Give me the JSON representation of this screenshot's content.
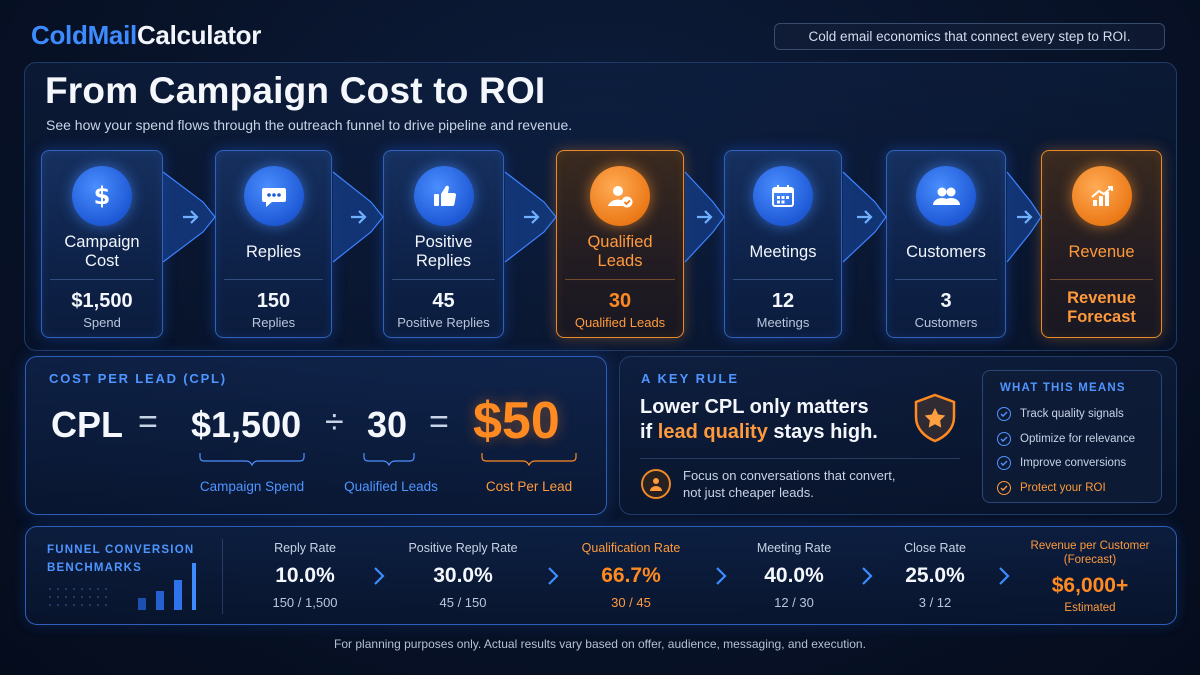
{
  "brand": {
    "part1": "ColdMail",
    "part2": "Calculator"
  },
  "tagline": "Cold email economics that connect every step to ROI.",
  "hero": {
    "title": "From Campaign Cost to ROI",
    "subtitle": "See how your spend flows through the outreach funnel to drive pipeline and revenue."
  },
  "funnel": [
    {
      "icon": "dollar-icon",
      "label": "Campaign Cost",
      "value": "$1,500",
      "unit": "Spend",
      "highlight": false
    },
    {
      "icon": "chat-icon",
      "label": "Replies",
      "value": "150",
      "unit": "Replies",
      "highlight": false
    },
    {
      "icon": "thumbs-up-icon",
      "label": "Positive Replies",
      "value": "45",
      "unit": "Positive Replies",
      "highlight": false
    },
    {
      "icon": "user-check-icon",
      "label": "Qualified Leads",
      "value": "30",
      "unit": "Qualified Leads",
      "highlight": true
    },
    {
      "icon": "calendar-icon",
      "label": "Meetings",
      "value": "12",
      "unit": "Meetings",
      "highlight": false
    },
    {
      "icon": "users-icon",
      "label": "Customers",
      "value": "3",
      "unit": "Customers",
      "highlight": false
    },
    {
      "icon": "growth-chart-icon",
      "label": "Revenue",
      "value": "Revenue Forecast",
      "unit": "",
      "highlight": true
    }
  ],
  "cpl": {
    "heading": "COST PER LEAD (CPL)",
    "lhs": "CPL",
    "equals": "=",
    "spend": "$1,500",
    "divide": "÷",
    "leads": "30",
    "equals2": "=",
    "result": "$50",
    "captions": {
      "spend": "Campaign Spend",
      "leads": "Qualified Leads",
      "result": "Cost Per Lead"
    }
  },
  "rule": {
    "heading": "A KEY RULE",
    "line1": "Lower CPL only matters",
    "line2_pre": "if ",
    "line2_hl": "lead quality",
    "line2_post": " stays high.",
    "note1": "Focus on conversations that convert,",
    "note2": "not just cheaper leads.",
    "means_heading": "WHAT THIS MEANS",
    "means": [
      {
        "text": "Track quality signals",
        "highlight": false
      },
      {
        "text": "Optimize for relevance",
        "highlight": false
      },
      {
        "text": "Improve conversions",
        "highlight": false
      },
      {
        "text": "Protect your ROI",
        "highlight": true
      }
    ]
  },
  "benchmarks": {
    "heading": "FUNNEL CONVERSION BENCHMARKS",
    "metrics": [
      {
        "label": "Reply Rate",
        "value": "10.0%",
        "sub": "150 / 1,500",
        "highlight": false
      },
      {
        "label": "Positive Reply Rate",
        "value": "30.0%",
        "sub": "45 / 150",
        "highlight": false
      },
      {
        "label": "Qualification Rate",
        "value": "66.7%",
        "sub": "30 / 45",
        "highlight": true
      },
      {
        "label": "Meeting Rate",
        "value": "40.0%",
        "sub": "12 / 30",
        "highlight": false
      },
      {
        "label": "Close Rate",
        "value": "25.0%",
        "sub": "3 / 12",
        "highlight": false
      }
    ],
    "revenue": {
      "label": "Revenue per Customer (Forecast)",
      "value": "$6,000+",
      "sub": "Estimated"
    }
  },
  "footer": "For planning purposes only. Actual results vary based on offer, audience, messaging, and execution.",
  "colors": {
    "accent_blue": "#3d8cff",
    "accent_orange": "#ff8a22",
    "background": "#081329"
  }
}
